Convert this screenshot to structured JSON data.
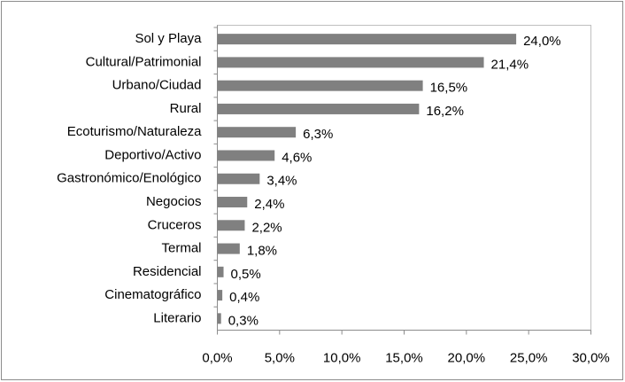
{
  "chart_data": {
    "type": "hbar",
    "categories": [
      "Sol y Playa",
      "Cultural/Patrimonial",
      "Urbano/Ciudad",
      "Rural",
      "Ecoturismo/Naturaleza",
      "Deportivo/Activo",
      "Gastronómico/Enológico",
      "Negocios",
      "Cruceros",
      "Termal",
      "Residencial",
      "Cinematográfico",
      "Literario"
    ],
    "values": [
      24.0,
      21.4,
      16.5,
      16.2,
      6.3,
      4.6,
      3.4,
      2.4,
      2.2,
      1.8,
      0.5,
      0.4,
      0.3
    ],
    "value_labels": [
      "24,0%",
      "21,4%",
      "16,5%",
      "16,2%",
      "6,3%",
      "4,6%",
      "3,4%",
      "2,4%",
      "2,2%",
      "1,8%",
      "0,5%",
      "0,4%",
      "0,3%"
    ],
    "color": "#808080",
    "xlim": [
      0,
      30
    ],
    "xticks": [
      {
        "value": 0,
        "label": "0,0%"
      },
      {
        "value": 5,
        "label": "5,0%"
      },
      {
        "value": 10,
        "label": "10,0%"
      },
      {
        "value": 15,
        "label": "15,0%"
      },
      {
        "value": 20,
        "label": "20,0%"
      },
      {
        "value": 25,
        "label": "25,0%"
      },
      {
        "value": 30,
        "label": "30,0%"
      }
    ],
    "grid": false
  }
}
